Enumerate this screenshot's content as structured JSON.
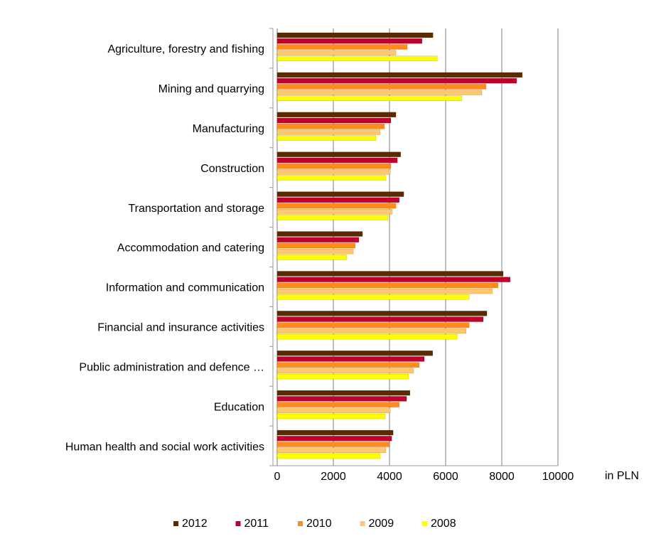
{
  "chart_data": {
    "type": "bar",
    "orientation": "horizontal",
    "categories": [
      "Agriculture, forestry and fishing",
      "Mining and quarrying",
      "Manufacturing",
      "Construction",
      "Transportation and storage",
      "Accommodation and catering",
      "Information and communication",
      "Financial and insurance activities",
      "Public administration and defence …",
      "Education",
      "Human health and social work activities"
    ],
    "series": [
      {
        "name": "2012",
        "color": "#5c2a00",
        "values": [
          5550,
          8730,
          4230,
          4400,
          4510,
          3040,
          8050,
          7470,
          5540,
          4730,
          4130
        ]
      },
      {
        "name": "2011",
        "color": "#c0002a",
        "values": [
          5160,
          8530,
          4050,
          4280,
          4350,
          2910,
          8300,
          7340,
          5240,
          4610,
          4080
        ]
      },
      {
        "name": "2010",
        "color": "#ff8c1a",
        "values": [
          4630,
          7440,
          3820,
          4050,
          4230,
          2780,
          7870,
          6840,
          5060,
          4350,
          4000
        ]
      },
      {
        "name": "2009",
        "color": "#ffc870",
        "values": [
          4230,
          7290,
          3670,
          4030,
          4100,
          2710,
          7670,
          6730,
          4860,
          4030,
          3870
        ]
      },
      {
        "name": "2008",
        "color": "#ffff00",
        "values": [
          5700,
          6580,
          3520,
          3870,
          3950,
          2480,
          6840,
          6410,
          4680,
          3850,
          3670
        ]
      }
    ],
    "x_label": "in PLN",
    "xlim": [
      0,
      10000
    ],
    "xticks": [
      0,
      2000,
      4000,
      6000,
      8000,
      10000
    ],
    "grid": true,
    "legend": "bottom"
  }
}
